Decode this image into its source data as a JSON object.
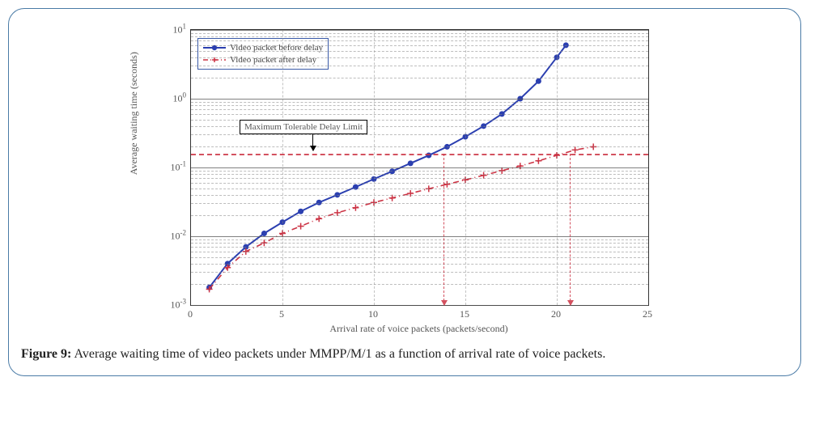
{
  "figure": {
    "caption_label": "Figure 9:",
    "caption_text": "Average waiting time of video packets under MMPP/M/1 as a function of arrival rate of voice packets."
  },
  "chart": {
    "type": "line",
    "xlabel": "Arrival rate of voice packets (packets/second)",
    "ylabel": "Average waiting time (seconds)",
    "xlim": [
      0,
      25
    ],
    "xticks": [
      0,
      5,
      10,
      15,
      20,
      25
    ],
    "yscale": "log",
    "ylim_exp": [
      -3,
      1
    ],
    "ytick_exp": [
      -3,
      -2,
      -1,
      0,
      1
    ],
    "background_color": "#ffffff",
    "grid_color": "#888888",
    "axis_color": "#333333",
    "tick_fontsize": 12,
    "label_fontsize": 12,
    "legend": {
      "position": "upper-left",
      "border_color": "#3a5aa8",
      "items": [
        {
          "label": "Video packet before delay",
          "color": "#2b3fb0",
          "marker": "circle",
          "dash": "solid"
        },
        {
          "label": "Video packet after delay",
          "color": "#cc3344",
          "marker": "plus",
          "dash": "dashdot"
        }
      ]
    },
    "series": [
      {
        "name": "before",
        "color": "#2b3fb0",
        "line_width": 2,
        "dash": "solid",
        "marker": "circle",
        "marker_size": 5,
        "x": [
          1,
          2,
          3,
          4,
          5,
          6,
          7,
          8,
          9,
          10,
          11,
          12,
          13,
          14,
          15,
          16,
          17,
          18,
          19,
          20,
          20.5
        ],
        "y": [
          0.0018,
          0.004,
          0.007,
          0.011,
          0.016,
          0.023,
          0.031,
          0.04,
          0.052,
          0.068,
          0.088,
          0.115,
          0.15,
          0.2,
          0.28,
          0.4,
          0.6,
          1.0,
          1.8,
          4.0,
          6.0
        ]
      },
      {
        "name": "after",
        "color": "#cc3344",
        "line_width": 1.6,
        "dash": "dashdot",
        "marker": "plus",
        "marker_size": 5,
        "x": [
          1,
          2,
          3,
          4,
          5,
          6,
          7,
          8,
          9,
          10,
          11,
          12,
          13,
          14,
          15,
          16,
          17,
          18,
          19,
          20,
          21,
          22
        ],
        "y": [
          0.0017,
          0.0035,
          0.006,
          0.008,
          0.011,
          0.014,
          0.018,
          0.022,
          0.026,
          0.031,
          0.036,
          0.042,
          0.049,
          0.057,
          0.066,
          0.077,
          0.09,
          0.105,
          0.125,
          0.15,
          0.18,
          0.2
        ]
      }
    ],
    "delay_limit": {
      "label": "Maximum Tolerable Delay Limit",
      "y": 0.16,
      "color": "#cc3344",
      "vlines_x": [
        13.8,
        20.7
      ]
    }
  }
}
